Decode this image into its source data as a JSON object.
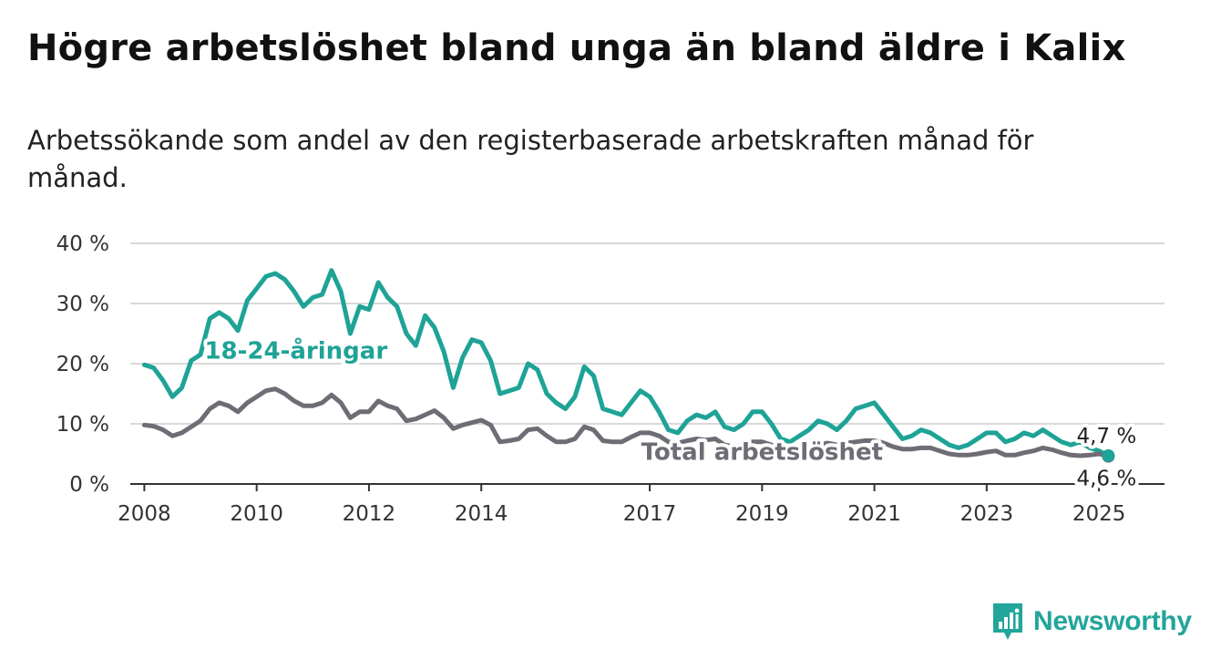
{
  "title": "Högre arbetslöshet bland unga än bland äldre i Kalix",
  "subtitle": "Arbetssökande som andel av den registerbaserade arbetskraften månad för månad.",
  "brand": {
    "name": "Newsworthy",
    "icon": "bar-chart-logo-icon"
  },
  "colors": {
    "youth": "#1ea396",
    "total": "#6f6c75",
    "grid": "#d9d9d9",
    "axis": "#333333"
  },
  "chart_data": {
    "type": "line",
    "x_tick_labels": [
      "2008",
      "2010",
      "2012",
      "2014",
      "2017",
      "2019",
      "2021",
      "2023",
      "2025"
    ],
    "y_tick_labels": [
      "0 %",
      "10 %",
      "20 %",
      "30 %",
      "40 %"
    ],
    "ylim": [
      0,
      40
    ],
    "xlim": [
      "2007-10",
      "2026-03"
    ],
    "grid": true,
    "series": [
      {
        "name": "18-24-åringar",
        "color": "#1ea396",
        "end_label": "4,7 %",
        "points": [
          [
            "2008-01",
            19.8
          ],
          [
            "2008-03",
            19.3
          ],
          [
            "2008-05",
            17.2
          ],
          [
            "2008-07",
            14.5
          ],
          [
            "2008-09",
            16.0
          ],
          [
            "2008-11",
            20.5
          ],
          [
            "2009-01",
            21.5
          ],
          [
            "2009-03",
            27.5
          ],
          [
            "2009-05",
            28.5
          ],
          [
            "2009-07",
            27.5
          ],
          [
            "2009-09",
            25.5
          ],
          [
            "2009-11",
            30.5
          ],
          [
            "2010-01",
            32.5
          ],
          [
            "2010-03",
            34.5
          ],
          [
            "2010-05",
            35.0
          ],
          [
            "2010-07",
            34.0
          ],
          [
            "2010-09",
            32.0
          ],
          [
            "2010-11",
            29.5
          ],
          [
            "2011-01",
            31.0
          ],
          [
            "2011-03",
            31.5
          ],
          [
            "2011-05",
            35.5
          ],
          [
            "2011-07",
            32.0
          ],
          [
            "2011-09",
            25.0
          ],
          [
            "2011-11",
            29.5
          ],
          [
            "2012-01",
            29.0
          ],
          [
            "2012-03",
            33.5
          ],
          [
            "2012-05",
            31.0
          ],
          [
            "2012-07",
            29.5
          ],
          [
            "2012-09",
            25.0
          ],
          [
            "2012-11",
            23.0
          ],
          [
            "2013-01",
            28.0
          ],
          [
            "2013-03",
            26.0
          ],
          [
            "2013-05",
            22.0
          ],
          [
            "2013-07",
            16.0
          ],
          [
            "2013-09",
            21.0
          ],
          [
            "2013-11",
            24.0
          ],
          [
            "2014-01",
            23.5
          ],
          [
            "2014-03",
            20.5
          ],
          [
            "2014-05",
            15.0
          ],
          [
            "2014-07",
            15.5
          ],
          [
            "2014-09",
            16.0
          ],
          [
            "2014-11",
            20.0
          ],
          [
            "2015-01",
            19.0
          ],
          [
            "2015-03",
            15.0
          ],
          [
            "2015-05",
            13.5
          ],
          [
            "2015-07",
            12.5
          ],
          [
            "2015-09",
            14.5
          ],
          [
            "2015-11",
            19.5
          ],
          [
            "2016-01",
            18.0
          ],
          [
            "2016-03",
            12.5
          ],
          [
            "2016-05",
            12.0
          ],
          [
            "2016-07",
            11.5
          ],
          [
            "2016-09",
            13.5
          ],
          [
            "2016-11",
            15.5
          ],
          [
            "2017-01",
            14.5
          ],
          [
            "2017-03",
            12.0
          ],
          [
            "2017-05",
            9.0
          ],
          [
            "2017-07",
            8.5
          ],
          [
            "2017-09",
            10.5
          ],
          [
            "2017-11",
            11.5
          ],
          [
            "2018-01",
            11.0
          ],
          [
            "2018-03",
            12.0
          ],
          [
            "2018-05",
            9.5
          ],
          [
            "2018-07",
            9.0
          ],
          [
            "2018-09",
            10.0
          ],
          [
            "2018-11",
            12.0
          ],
          [
            "2019-01",
            12.0
          ],
          [
            "2019-03",
            10.0
          ],
          [
            "2019-05",
            7.5
          ],
          [
            "2019-07",
            7.0
          ],
          [
            "2019-09",
            8.0
          ],
          [
            "2019-11",
            9.0
          ],
          [
            "2020-01",
            10.5
          ],
          [
            "2020-03",
            10.0
          ],
          [
            "2020-05",
            9.0
          ],
          [
            "2020-07",
            10.5
          ],
          [
            "2020-09",
            12.5
          ],
          [
            "2020-11",
            13.0
          ],
          [
            "2021-01",
            13.5
          ],
          [
            "2021-03",
            11.5
          ],
          [
            "2021-05",
            9.5
          ],
          [
            "2021-07",
            7.5
          ],
          [
            "2021-09",
            8.0
          ],
          [
            "2021-11",
            9.0
          ],
          [
            "2022-01",
            8.5
          ],
          [
            "2022-03",
            7.5
          ],
          [
            "2022-05",
            6.5
          ],
          [
            "2022-07",
            6.0
          ],
          [
            "2022-09",
            6.5
          ],
          [
            "2022-11",
            7.5
          ],
          [
            "2023-01",
            8.5
          ],
          [
            "2023-03",
            8.5
          ],
          [
            "2023-05",
            7.0
          ],
          [
            "2023-07",
            7.5
          ],
          [
            "2023-09",
            8.5
          ],
          [
            "2023-11",
            8.0
          ],
          [
            "2024-01",
            9.0
          ],
          [
            "2024-03",
            8.0
          ],
          [
            "2024-05",
            7.0
          ],
          [
            "2024-07",
            6.5
          ],
          [
            "2024-09",
            7.0
          ],
          [
            "2024-11",
            6.0
          ],
          [
            "2025-01",
            5.5
          ],
          [
            "2025-03",
            4.7
          ]
        ]
      },
      {
        "name": "Total arbetslöshet",
        "color": "#6f6c75",
        "end_label": "4,6 %",
        "points": [
          [
            "2008-01",
            9.8
          ],
          [
            "2008-03",
            9.6
          ],
          [
            "2008-05",
            9.0
          ],
          [
            "2008-07",
            8.0
          ],
          [
            "2008-09",
            8.5
          ],
          [
            "2008-11",
            9.5
          ],
          [
            "2009-01",
            10.5
          ],
          [
            "2009-03",
            12.5
          ],
          [
            "2009-05",
            13.5
          ],
          [
            "2009-07",
            13.0
          ],
          [
            "2009-09",
            12.0
          ],
          [
            "2009-11",
            13.5
          ],
          [
            "2010-01",
            14.5
          ],
          [
            "2010-03",
            15.5
          ],
          [
            "2010-05",
            15.8
          ],
          [
            "2010-07",
            15.0
          ],
          [
            "2010-09",
            13.8
          ],
          [
            "2010-11",
            13.0
          ],
          [
            "2011-01",
            13.0
          ],
          [
            "2011-03",
            13.5
          ],
          [
            "2011-05",
            14.8
          ],
          [
            "2011-07",
            13.5
          ],
          [
            "2011-09",
            11.0
          ],
          [
            "2011-11",
            12.0
          ],
          [
            "2012-01",
            12.0
          ],
          [
            "2012-03",
            13.8
          ],
          [
            "2012-05",
            13.0
          ],
          [
            "2012-07",
            12.5
          ],
          [
            "2012-09",
            10.5
          ],
          [
            "2012-11",
            10.8
          ],
          [
            "2013-01",
            11.5
          ],
          [
            "2013-03",
            12.2
          ],
          [
            "2013-05",
            11.0
          ],
          [
            "2013-07",
            9.2
          ],
          [
            "2013-09",
            9.8
          ],
          [
            "2013-11",
            10.2
          ],
          [
            "2014-01",
            10.6
          ],
          [
            "2014-03",
            9.8
          ],
          [
            "2014-05",
            7.0
          ],
          [
            "2014-07",
            7.2
          ],
          [
            "2014-09",
            7.5
          ],
          [
            "2014-11",
            9.0
          ],
          [
            "2015-01",
            9.2
          ],
          [
            "2015-03",
            8.0
          ],
          [
            "2015-05",
            7.0
          ],
          [
            "2015-07",
            7.0
          ],
          [
            "2015-09",
            7.5
          ],
          [
            "2015-11",
            9.5
          ],
          [
            "2016-01",
            9.0
          ],
          [
            "2016-03",
            7.2
          ],
          [
            "2016-05",
            7.0
          ],
          [
            "2016-07",
            7.0
          ],
          [
            "2016-09",
            7.8
          ],
          [
            "2016-11",
            8.5
          ],
          [
            "2017-01",
            8.5
          ],
          [
            "2017-03",
            8.0
          ],
          [
            "2017-05",
            7.0
          ],
          [
            "2017-07",
            6.8
          ],
          [
            "2017-09",
            7.2
          ],
          [
            "2017-11",
            7.5
          ],
          [
            "2018-01",
            7.3
          ],
          [
            "2018-03",
            7.5
          ],
          [
            "2018-05",
            6.5
          ],
          [
            "2018-07",
            6.2
          ],
          [
            "2018-09",
            6.5
          ],
          [
            "2018-11",
            7.0
          ],
          [
            "2019-01",
            7.0
          ],
          [
            "2019-03",
            6.5
          ],
          [
            "2019-05",
            5.8
          ],
          [
            "2019-07",
            5.5
          ],
          [
            "2019-09",
            5.8
          ],
          [
            "2019-11",
            6.0
          ],
          [
            "2020-01",
            6.5
          ],
          [
            "2020-03",
            6.8
          ],
          [
            "2020-05",
            6.5
          ],
          [
            "2020-07",
            6.8
          ],
          [
            "2020-09",
            7.0
          ],
          [
            "2020-11",
            7.2
          ],
          [
            "2021-01",
            7.2
          ],
          [
            "2021-03",
            6.8
          ],
          [
            "2021-05",
            6.2
          ],
          [
            "2021-07",
            5.8
          ],
          [
            "2021-09",
            5.8
          ],
          [
            "2021-11",
            6.0
          ],
          [
            "2022-01",
            6.0
          ],
          [
            "2022-03",
            5.5
          ],
          [
            "2022-05",
            5.0
          ],
          [
            "2022-07",
            4.8
          ],
          [
            "2022-09",
            4.8
          ],
          [
            "2022-11",
            5.0
          ],
          [
            "2023-01",
            5.3
          ],
          [
            "2023-03",
            5.5
          ],
          [
            "2023-05",
            4.8
          ],
          [
            "2023-07",
            4.8
          ],
          [
            "2023-09",
            5.2
          ],
          [
            "2023-11",
            5.5
          ],
          [
            "2024-01",
            6.0
          ],
          [
            "2024-03",
            5.7
          ],
          [
            "2024-05",
            5.2
          ],
          [
            "2024-07",
            4.8
          ],
          [
            "2024-09",
            4.7
          ],
          [
            "2024-11",
            4.8
          ],
          [
            "2025-01",
            5.0
          ],
          [
            "2025-03",
            4.6
          ]
        ]
      }
    ]
  }
}
